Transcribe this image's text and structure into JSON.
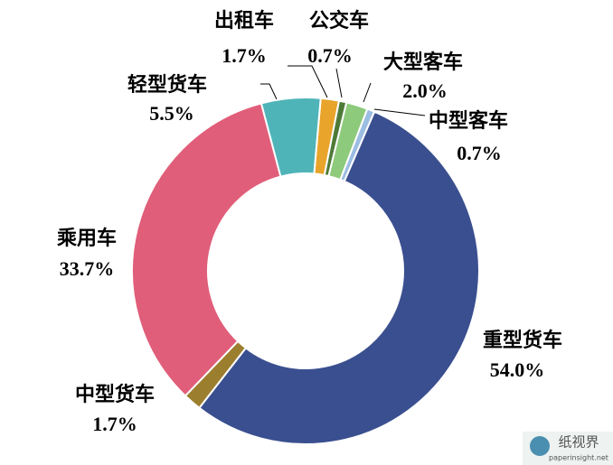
{
  "chart_data": {
    "type": "donut",
    "categories": [
      "出租车",
      "公交车",
      "大型客车",
      "中型客车",
      "重型货车",
      "中型货车",
      "乘用车",
      "轻型货车"
    ],
    "values": [
      1.7,
      0.7,
      2.0,
      0.7,
      54.0,
      1.7,
      33.7,
      5.5
    ],
    "value_labels": [
      "1.7%",
      "0.7%",
      "2.0%",
      "0.7%",
      "54.0%",
      "1.7%",
      "33.7%",
      "5.5%"
    ],
    "colors": [
      "#e9a42b",
      "#4e7a37",
      "#8dca7b",
      "#9cbde2",
      "#3a4f8f",
      "#9c7e2f",
      "#e05e79",
      "#4fb4b8"
    ]
  },
  "watermark": {
    "text": "纸视界",
    "url": "paperinsight.net"
  }
}
